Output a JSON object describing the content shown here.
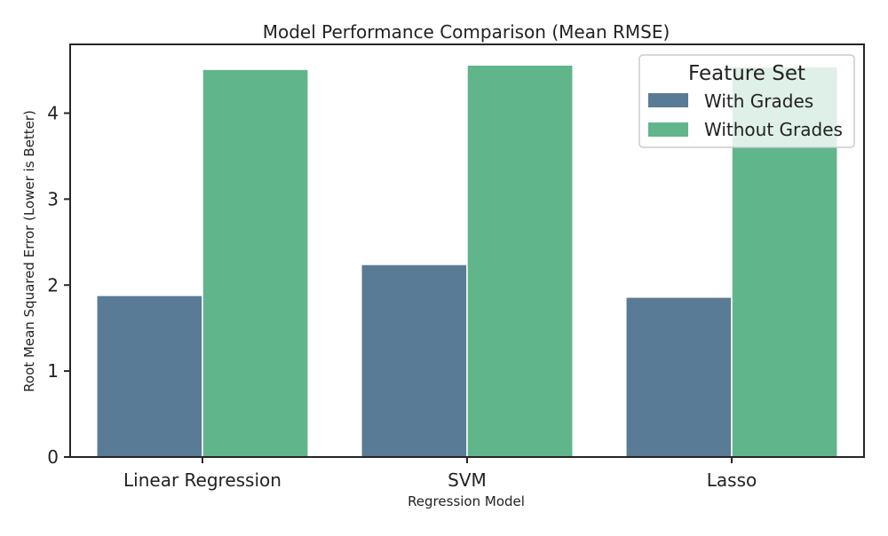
{
  "colors": {
    "with_grades": "#5a7b96",
    "without_grades": "#61b58b",
    "axis": "#262626",
    "legend_border": "#cccccc",
    "legend_bg": "#ffffff"
  },
  "chart_data": {
    "type": "bar",
    "title": "Model Performance Comparison (Mean RMSE)",
    "xlabel": "Regression Model",
    "ylabel": "Root Mean Squared Error (Lower is Better)",
    "categories": [
      "Linear Regression",
      "SVM",
      "Lasso"
    ],
    "series": [
      {
        "name": "With Grades",
        "values": [
          1.88,
          2.24,
          1.86
        ]
      },
      {
        "name": "Without Grades",
        "values": [
          4.51,
          4.56,
          4.54
        ]
      }
    ],
    "ylim": [
      0,
      4.8
    ],
    "yticks": [
      0,
      1,
      2,
      3,
      4
    ],
    "legend": {
      "title": "Feature Set",
      "position": "top-right"
    },
    "grid": false
  }
}
